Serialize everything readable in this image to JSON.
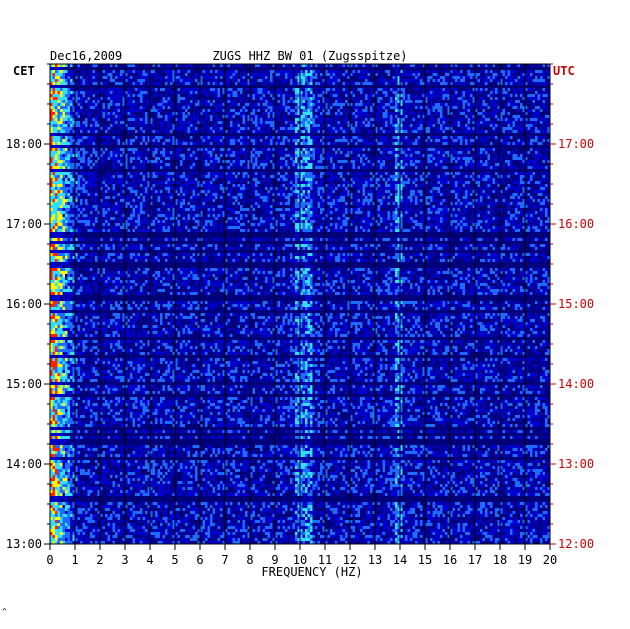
{
  "header": {
    "date": "Dec16,2009",
    "station": "ZUGS HHZ BW 01 (Zugsspitze)",
    "left_tz": "CET",
    "right_tz": "UTC"
  },
  "chart_data": {
    "type": "heatmap",
    "title": "ZUGS HHZ BW 01 (Zugsspitze)",
    "xlabel": "FREQUENCY (HZ)",
    "xlim": [
      0,
      20
    ],
    "x_ticks": [
      0,
      1,
      2,
      3,
      4,
      5,
      6,
      7,
      8,
      9,
      10,
      11,
      12,
      13,
      14,
      15,
      16,
      17,
      18,
      19,
      20
    ],
    "y_ticks_left": [
      "18:00",
      "17:00",
      "16:00",
      "15:00",
      "14:00",
      "13:00"
    ],
    "y_ticks_right": [
      "17:00",
      "16:00",
      "15:00",
      "14:00",
      "13:00",
      "12:00"
    ],
    "time_range_cet": [
      "13:00",
      "19:00"
    ],
    "colors": {
      "background": "#00007a",
      "low": "#0000cc",
      "mid": "#1e6bff",
      "high": "#33ddff",
      "peak": "#ffff00",
      "max": "#ff2200",
      "utc_label": "#cc0000"
    }
  }
}
